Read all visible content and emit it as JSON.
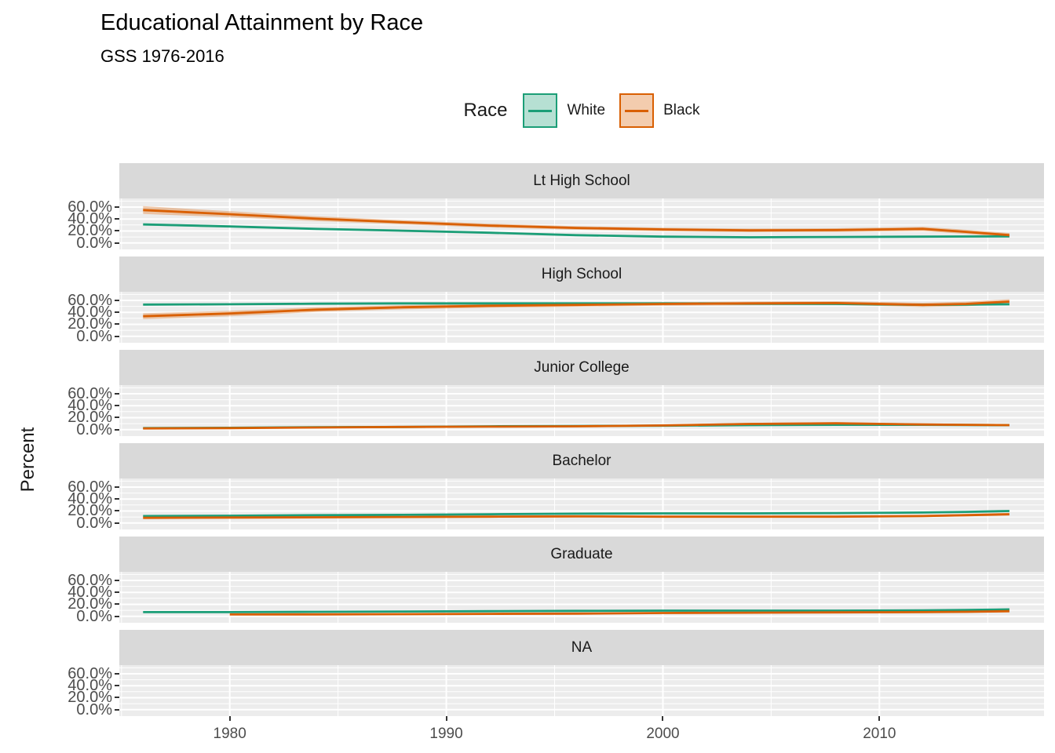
{
  "title": "Educational Attainment by Race",
  "subtitle": "GSS 1976-2016",
  "legend": {
    "title": "Race",
    "items": [
      {
        "label": "White",
        "line_color": "#1B9E77",
        "fill_color": "rgba(27,158,119,0.32)"
      },
      {
        "label": "Black",
        "line_color": "#D95F02",
        "fill_color": "rgba(217,95,2,0.32)"
      }
    ]
  },
  "axes": {
    "y_title": "Percent",
    "y_tick_labels": [
      "60.0%",
      "40.0%",
      "20.0%",
      "0.0%"
    ],
    "y_tick_values": [
      60,
      40,
      20,
      0
    ],
    "x_tick_labels": [
      "1980",
      "1990",
      "2000",
      "2010"
    ],
    "x_tick_values": [
      1980,
      1990,
      2000,
      2010
    ]
  },
  "colors": {
    "panel_bg": "#ECECEC",
    "strip_bg": "#D9D9D9",
    "grid": "#FFFFFF",
    "axis_text": "#4d4d4d",
    "tick": "#333333"
  },
  "chart_data": {
    "type": "line",
    "title": "Educational Attainment by Race",
    "subtitle": "GSS 1976-2016",
    "xlabel": "",
    "ylabel": "Percent",
    "legend_position": "top",
    "grid": true,
    "x_domain": [
      1974.9,
      2017.6
    ],
    "y_domain": [
      -10.9,
      74.4
    ],
    "x_minor": [
      1975,
      1985,
      1995,
      2005,
      2015
    ],
    "y_minor": [
      10,
      30,
      50,
      70
    ],
    "facets": [
      {
        "label": "Lt High School",
        "series": [
          {
            "name": "White",
            "x": [
              1976,
              1980,
              1984,
              1988,
              1992,
              1996,
              2000,
              2004,
              2008,
              2012,
              2014,
              2016
            ],
            "y": [
              31,
              27.5,
              23.5,
              20.5,
              17,
              13,
              10.5,
              9.5,
              10,
              10.5,
              10.8,
              11
            ],
            "ribbon": [
              2,
              1.5,
              1.3,
              1.2,
              1.2,
              1.2,
              1.1,
              1.1,
              1.1,
              1.4,
              1.7,
              2
            ]
          },
          {
            "name": "Black",
            "x": [
              1976,
              1980,
              1984,
              1988,
              1992,
              1996,
              2000,
              2004,
              2008,
              2012,
              2014,
              2016
            ],
            "y": [
              55,
              48,
              40.5,
              34.5,
              29,
              25,
              22.5,
              21,
              21.5,
              23.5,
              18.5,
              13
            ],
            "ribbon": [
              6.5,
              5,
              4,
              3.5,
              3.2,
              3,
              3,
              3,
              3,
              3.5,
              3.5,
              3.5
            ]
          }
        ]
      },
      {
        "label": "High School",
        "series": [
          {
            "name": "White",
            "x": [
              1976,
              1980,
              1984,
              1988,
              1992,
              1996,
              2000,
              2004,
              2008,
              2012,
              2014,
              2016
            ],
            "y": [
              53,
              53.5,
              54.5,
              55,
              55,
              55,
              55,
              54.5,
              54,
              52.5,
              53,
              53.5
            ],
            "ribbon": [
              1.5,
              1.2,
              1.2,
              1.1,
              1.1,
              1.1,
              1.1,
              1.1,
              1.2,
              1.5,
              1.7,
              2
            ]
          },
          {
            "name": "Black",
            "x": [
              1976,
              1980,
              1984,
              1988,
              1992,
              1996,
              2000,
              2004,
              2008,
              2012,
              2014,
              2016
            ],
            "y": [
              33.5,
              38,
              44.5,
              48.5,
              51,
              52.5,
              54,
              55,
              55.5,
              52.5,
              54,
              58
            ],
            "ribbon": [
              5,
              4.5,
              4,
              3.5,
              3.2,
              3,
              3,
              3,
              3.2,
              3.5,
              3.8,
              4
            ]
          }
        ]
      },
      {
        "label": "Junior College",
        "series": [
          {
            "name": "White",
            "x": [
              1976,
              1980,
              1984,
              1988,
              1992,
              1996,
              2000,
              2004,
              2008,
              2012,
              2014,
              2016
            ],
            "y": [
              2.5,
              3,
              4,
              4.5,
              5.5,
              6,
              6.5,
              7.5,
              8,
              8,
              7.8,
              7.5
            ],
            "ribbon": [
              0.8,
              0.7,
              0.7,
              0.7,
              0.7,
              0.7,
              0.8,
              0.8,
              0.9,
              1,
              1,
              1.1
            ]
          },
          {
            "name": "Black",
            "x": [
              1976,
              1980,
              1984,
              1988,
              1992,
              1996,
              2000,
              2004,
              2008,
              2012,
              2014,
              2016
            ],
            "y": [
              2,
              2.5,
              3.5,
              4.5,
              5,
              5.5,
              7,
              9.5,
              10.5,
              8.5,
              8,
              7.5
            ],
            "ribbon": [
              1.2,
              1.2,
              1.2,
              1.2,
              1.2,
              1.3,
              1.5,
              1.8,
              2,
              1.8,
              1.8,
              1.8
            ]
          }
        ]
      },
      {
        "label": "Bachelor",
        "series": [
          {
            "name": "White",
            "x": [
              1976,
              1980,
              1984,
              1988,
              1992,
              1996,
              2000,
              2004,
              2008,
              2012,
              2014,
              2016
            ],
            "y": [
              11.5,
              12,
              13,
              13.5,
              14.5,
              15.5,
              16,
              16,
              16.5,
              17.5,
              18.5,
              20
            ],
            "ribbon": [
              1.3,
              1.1,
              1,
              1,
              1,
              1,
              1,
              1,
              1.1,
              1.2,
              1.3,
              1.5
            ]
          },
          {
            "name": "Black",
            "x": [
              1976,
              1980,
              1984,
              1988,
              1992,
              1996,
              2000,
              2004,
              2008,
              2012,
              2014,
              2016
            ],
            "y": [
              8.5,
              9,
              9.5,
              10,
              10.5,
              11,
              10.5,
              10.5,
              10.5,
              11.5,
              13,
              14.5
            ],
            "ribbon": [
              2,
              1.8,
              1.7,
              1.6,
              1.6,
              1.6,
              1.6,
              1.6,
              1.7,
              1.8,
              2,
              2.3
            ]
          }
        ]
      },
      {
        "label": "Graduate",
        "series": [
          {
            "name": "White",
            "x": [
              1976,
              1980,
              1984,
              1988,
              1992,
              1996,
              2000,
              2004,
              2008,
              2012,
              2014,
              2016
            ],
            "y": [
              7,
              7,
              7.5,
              8,
              8.5,
              9,
              9.5,
              9.5,
              9.5,
              10,
              10.5,
              11.5
            ],
            "ribbon": [
              1,
              0.9,
              0.8,
              0.8,
              0.8,
              0.8,
              0.8,
              0.8,
              0.9,
              1,
              1,
              1.2
            ]
          },
          {
            "name": "Black",
            "x": [
              1980,
              1984,
              1988,
              1992,
              1996,
              2000,
              2004,
              2008,
              2012,
              2014,
              2016
            ],
            "y": [
              3,
              3.2,
              3.5,
              4,
              4.5,
              5.5,
              6,
              6.5,
              7,
              7.5,
              8.5
            ],
            "ribbon": [
              1.3,
              1.2,
              1.1,
              1.1,
              1.1,
              1.2,
              1.2,
              1.3,
              1.5,
              1.6,
              1.8
            ]
          }
        ]
      },
      {
        "label": "NA",
        "series": []
      }
    ]
  }
}
